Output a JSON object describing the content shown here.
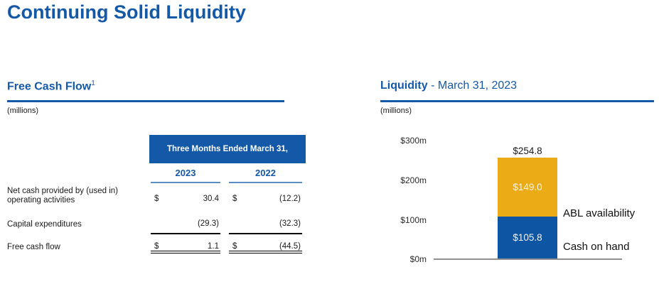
{
  "slide": {
    "title": "Continuing Solid Liquidity"
  },
  "colors": {
    "brand_blue": "#1459a8",
    "bar_blue": "#0e55a3",
    "bar_gold": "#eaab16",
    "table_header_bg": "#1459a8",
    "axis_gray": "#909090"
  },
  "fcf": {
    "heading": "Free Cash Flow",
    "heading_footnote": "1",
    "units": "(millions)",
    "table": {
      "header": "Three Months Ended March 31,",
      "years": [
        "2023",
        "2022"
      ],
      "rows": [
        {
          "label_line1": "Net cash provided by (used in)",
          "label_line2": "operating activities",
          "currency": "$",
          "y2023": "30.4",
          "y2022": "(12.2)"
        },
        {
          "label": "Capital expenditures",
          "y2023": "(29.3)",
          "y2022": "(32.3)"
        },
        {
          "label": "Free cash flow",
          "currency": "$",
          "y2023": "1.1",
          "y2022": "(44.5)"
        }
      ]
    }
  },
  "liquidity": {
    "heading_bold": "Liquidity",
    "heading_rest": " - March 31, 2023",
    "units": "(millions)"
  },
  "chart_data": {
    "type": "bar",
    "stacked": true,
    "title": "Liquidity - March 31, 2023",
    "units": "millions USD",
    "categories": [
      "March 31, 2023"
    ],
    "series": [
      {
        "name": "Cash on hand",
        "values": [
          105.8
        ],
        "data_label": "$105.8",
        "color": "#0e55a3"
      },
      {
        "name": "ABL availability",
        "values": [
          149.0
        ],
        "data_label": "$149.0",
        "color": "#eaab16"
      }
    ],
    "total": 254.8,
    "total_label": "$254.8",
    "yticks_top_to_bottom": [
      "$300m",
      "$200m",
      "$100m",
      "$0m"
    ],
    "ylim": [
      0,
      300
    ],
    "grid": false,
    "legend_position": "right-of-bar"
  }
}
